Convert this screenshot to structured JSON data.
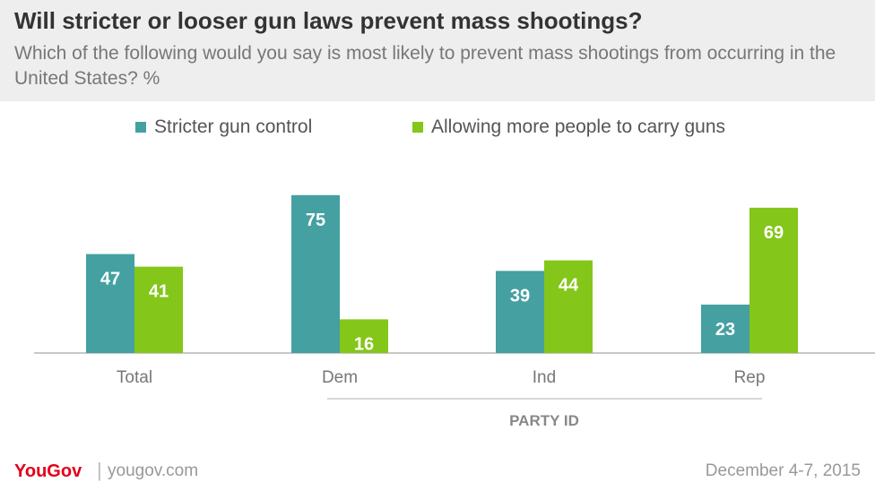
{
  "chart_data": {
    "type": "bar",
    "title": "Will stricter or looser gun laws prevent mass shootings?",
    "subtitle": "Which of the following would you say is most likely to prevent mass shootings from occurring in the United States? %",
    "categories": [
      "Total",
      "Dem",
      "Ind",
      "Rep"
    ],
    "series": [
      {
        "name": "Stricter gun control",
        "color": "#45a0a2",
        "values": [
          47,
          75,
          39,
          23
        ]
      },
      {
        "name": "Allowing more people to carry guns",
        "color": "#84c619",
        "values": [
          41,
          16,
          44,
          69
        ]
      }
    ],
    "group_label": "PARTY ID",
    "grouped_categories": [
      "Dem",
      "Ind",
      "Rep"
    ],
    "ylim": [
      0,
      100
    ],
    "legend_position": "top"
  },
  "footer": {
    "brand": "YouGov",
    "url": "yougov.com",
    "date": "December 4-7, 2015"
  }
}
